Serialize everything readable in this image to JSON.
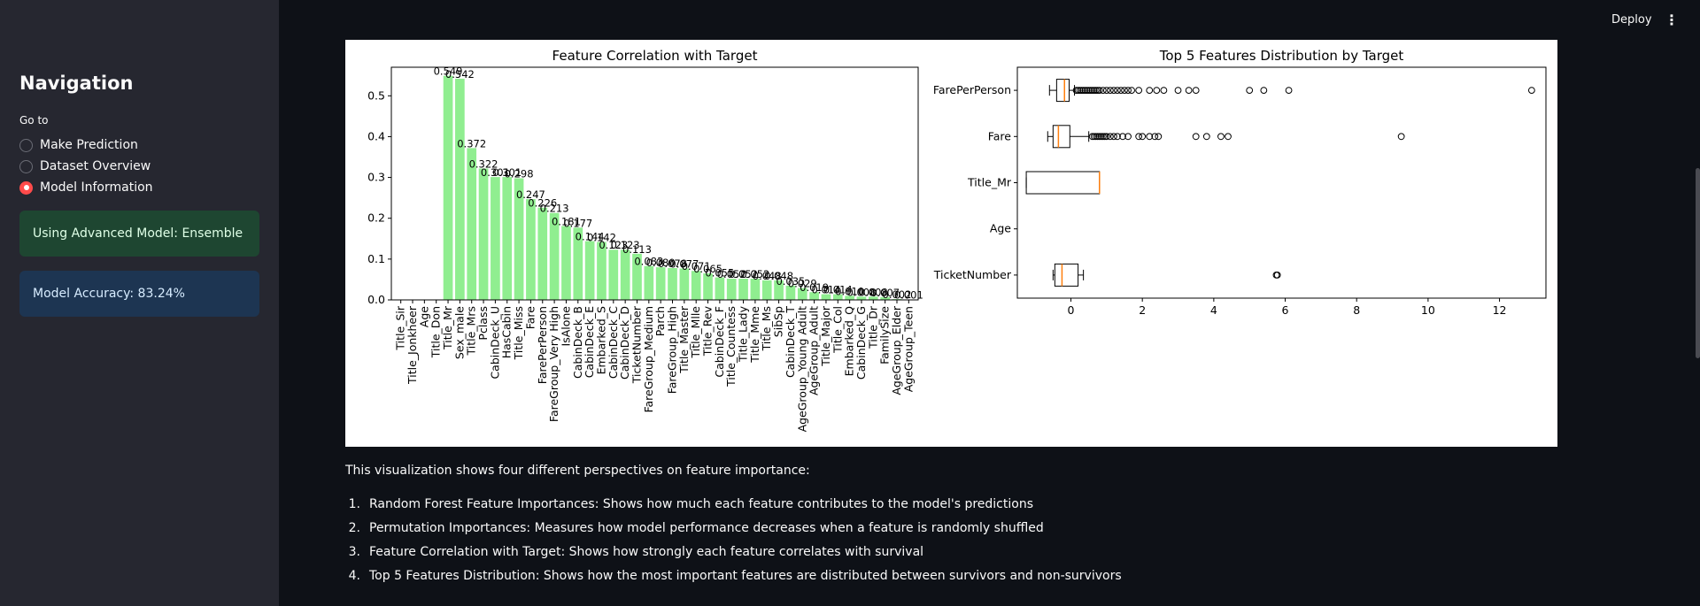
{
  "header": {
    "deploy_label": "Deploy",
    "menu_icon": "⋮"
  },
  "sidebar": {
    "title": "Navigation",
    "goto_label": "Go to",
    "options": [
      {
        "label": "Make Prediction",
        "selected": false
      },
      {
        "label": "Dataset Overview",
        "selected": false
      },
      {
        "label": "Model Information",
        "selected": true
      }
    ],
    "success_message": "Using Advanced Model: Ensemble",
    "info_message": "Model Accuracy: 83.24%"
  },
  "main": {
    "caption": "This visualization shows four different perspectives on feature importance:",
    "list": [
      {
        "num": "1.",
        "text": "Random Forest Feature Importances: Shows how much each feature contributes to the model's predictions"
      },
      {
        "num": "2.",
        "text": "Permutation Importances: Measures how model performance decreases when a feature is randomly shuffled"
      },
      {
        "num": "3.",
        "text": "Feature Correlation with Target: Shows how strongly each feature correlates with survival"
      },
      {
        "num": "4.",
        "text": "Top 5 Features Distribution: Shows how the most important features are distributed between survivors and non-survivors"
      }
    ]
  },
  "chart_data": [
    {
      "type": "bar",
      "title": "Feature Correlation with Target",
      "color": "#90ee90",
      "ylim": [
        0,
        0.57
      ],
      "yticks": [
        0.0,
        0.1,
        0.2,
        0.3,
        0.4,
        0.5
      ],
      "ytick_labels": [
        "0.0",
        "0.1",
        "0.2",
        "0.3",
        "0.4",
        "0.5"
      ],
      "categories": [
        "Title_Sir",
        "Title_Jonkheer",
        "Age",
        "Title_Don",
        "Title_Mr",
        "Sex_male",
        "Title_Mrs",
        "Pclass",
        "CabinDeck_U",
        "HasCabin",
        "Title_Miss",
        "Fare",
        "FarePerPerson",
        "FareGroup_Very High",
        "IsAlone",
        "CabinDeck_B",
        "CabinDeck_E",
        "Embarked_S",
        "CabinDeck_C",
        "CabinDeck_D",
        "TicketNumber",
        "FareGroup_Medium",
        "Parch",
        "FareGroup_High",
        "Title_Master",
        "Title_Mlle",
        "Title_Rev",
        "CabinDeck_F",
        "Title_Countess",
        "Title_Lady",
        "Title_Mme",
        "Title_Ms",
        "SibSp",
        "CabinDeck_T",
        "AgeGroup_Young Adult",
        "AgeGroup_Adult",
        "Title_Major",
        "Title_Col",
        "Embarked_Q",
        "CabinDeck_G",
        "Title_Dr",
        "FamilySize",
        "AgeGroup_Elder",
        "AgeGroup_Teen"
      ],
      "values": [
        0,
        0,
        0,
        0,
        0.549,
        0.542,
        0.372,
        0.322,
        0.301,
        0.301,
        0.298,
        0.247,
        0.226,
        0.213,
        0.181,
        0.177,
        0.144,
        0.142,
        0.123,
        0.123,
        0.113,
        0.083,
        0.08,
        0.078,
        0.077,
        0.071,
        0.065,
        0.055,
        0.052,
        0.052,
        0.052,
        0.048,
        0.048,
        0.035,
        0.029,
        0.019,
        0.014,
        0.014,
        0.01,
        0.008,
        0.008,
        0.007,
        0.002,
        0.001
      ],
      "value_labels": [
        "",
        "",
        "",
        "",
        "0.549",
        "0.542",
        "0.372",
        "0.322",
        "0.301",
        "0.301",
        "0.298",
        "0.247",
        "0.226",
        "0.213",
        "0.181",
        "0.177",
        "0.144",
        "0.142",
        "0.123",
        "0.123",
        "0.113",
        "0.083",
        "0.080",
        "0.078",
        "0.077",
        "0.071",
        "0.065",
        "0.055",
        "0.052",
        "0.052",
        "0.052",
        "0.048",
        "0.048",
        "0.035",
        "0.029",
        "0.019",
        "0.014",
        "0.014",
        "0.010",
        "0.008",
        "0.008",
        "0.007",
        "0.002",
        "0.001"
      ]
    },
    {
      "type": "boxplot",
      "orientation": "horizontal",
      "title": "Top 5 Features Distribution by Target",
      "xlim": [
        -1.5,
        13.3
      ],
      "xticks": [
        0,
        2,
        4,
        6,
        8,
        10,
        12
      ],
      "xtick_labels": [
        "0",
        "2",
        "4",
        "6",
        "8",
        "10",
        "12"
      ],
      "median_color": "#ff7f0e",
      "series": [
        {
          "name": "FarePerPerson",
          "whisker_low": -0.6,
          "q1": -0.4,
          "median": -0.18,
          "q3": -0.05,
          "whisker_high": 0.1,
          "outliers": [
            0.15,
            0.2,
            0.25,
            0.3,
            0.35,
            0.4,
            0.45,
            0.5,
            0.55,
            0.6,
            0.65,
            0.7,
            0.75,
            0.8,
            0.9,
            1.0,
            1.1,
            1.2,
            1.3,
            1.4,
            1.5,
            1.6,
            1.7,
            1.9,
            2.2,
            2.4,
            2.6,
            3.0,
            3.3,
            3.5,
            5.0,
            5.4,
            6.1,
            12.9
          ]
        },
        {
          "name": "Fare",
          "whisker_low": -0.65,
          "q1": -0.5,
          "median": -0.35,
          "q3": -0.03,
          "whisker_high": 0.5,
          "outliers": [
            0.6,
            0.65,
            0.7,
            0.75,
            0.8,
            0.85,
            0.9,
            0.95,
            1.0,
            1.1,
            1.2,
            1.3,
            1.45,
            1.6,
            1.9,
            2.0,
            2.2,
            2.35,
            2.45,
            3.5,
            3.8,
            4.2,
            4.4,
            9.25
          ]
        },
        {
          "name": "Title_Mr",
          "whisker_low": -1.25,
          "q1": -1.25,
          "median": 0.8,
          "q3": 0.8,
          "whisker_high": 0.8,
          "outliers": []
        },
        {
          "name": "Age",
          "whisker_low": null,
          "q1": null,
          "median": null,
          "q3": null,
          "whisker_high": null,
          "outliers": []
        },
        {
          "name": "TicketNumber",
          "whisker_low": -0.5,
          "q1": -0.45,
          "median": -0.25,
          "q3": 0.2,
          "whisker_high": 0.35,
          "outliers": [
            5.75,
            5.78
          ]
        }
      ]
    }
  ]
}
